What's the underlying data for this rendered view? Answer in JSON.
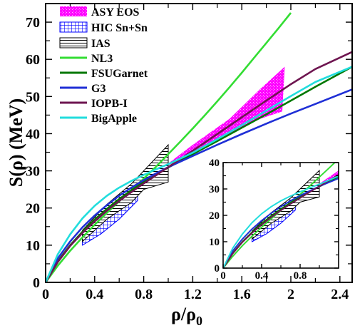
{
  "chart_data": {
    "type": "line",
    "xlabel": "ρ/ρ",
    "xlabel_sub": "0",
    "ylabel": "S(ρ) (MeV)",
    "xlim": [
      0,
      2.5
    ],
    "ylim": [
      0,
      75
    ],
    "x_ticks": [
      "0",
      "0.4",
      "0.8",
      "1.2",
      "1.6",
      "2",
      "2.4"
    ],
    "y_ticks": [
      "0",
      "10",
      "20",
      "30",
      "40",
      "50",
      "60",
      "70"
    ],
    "legend_position": "top-left",
    "bands": [
      {
        "name": "ASY EOS",
        "color": "#ff00ff",
        "pattern": "cross-dots",
        "upper": [
          [
            1.0,
            32.0
          ],
          [
            1.2,
            37.0
          ],
          [
            1.5,
            44.0
          ],
          [
            1.75,
            52.0
          ],
          [
            1.95,
            58.0
          ]
        ],
        "lower": [
          [
            1.0,
            31.5
          ],
          [
            1.2,
            34.5
          ],
          [
            1.5,
            40.0
          ],
          [
            1.75,
            44.0
          ],
          [
            1.93,
            46.0
          ]
        ]
      },
      {
        "name": "HIC Sn+Sn",
        "color": "#0000ff",
        "pattern": "grid",
        "upper": [
          [
            0.3,
            13.0
          ],
          [
            0.45,
            17.5
          ],
          [
            0.6,
            21.5
          ],
          [
            0.75,
            26.0
          ]
        ],
        "lower": [
          [
            0.3,
            10.0
          ],
          [
            0.45,
            13.0
          ],
          [
            0.6,
            17.0
          ],
          [
            0.75,
            22.0
          ]
        ]
      },
      {
        "name": "IAS",
        "color": "#000000",
        "pattern": "horizontal-lines",
        "upper": [
          [
            0.3,
            14.0
          ],
          [
            0.5,
            21.0
          ],
          [
            0.7,
            26.5
          ],
          [
            1.0,
            37.0
          ]
        ],
        "lower": [
          [
            0.3,
            11.0
          ],
          [
            0.5,
            17.0
          ],
          [
            0.7,
            21.5
          ],
          [
            0.8,
            25.0
          ],
          [
            1.0,
            27.0
          ]
        ]
      }
    ],
    "series": [
      {
        "name": "NL3",
        "color": "#33dd33",
        "x": [
          0,
          0.1,
          0.2,
          0.3,
          0.4,
          0.5,
          0.6,
          0.7,
          0.8,
          0.9,
          1.0,
          1.1,
          1.2,
          1.3,
          1.4,
          1.5,
          1.6,
          1.7,
          1.8,
          1.9,
          2.0
        ],
        "y": [
          0,
          4.5,
          8.5,
          12.1,
          15.5,
          18.7,
          21.8,
          24.8,
          27.9,
          31.1,
          34.5,
          37.9,
          41.4,
          45.0,
          48.7,
          52.5,
          56.4,
          60.4,
          64.4,
          68.4,
          72.5
        ]
      },
      {
        "name": "FSUGarnet",
        "color": "#007700",
        "x": [
          0,
          0.1,
          0.2,
          0.3,
          0.4,
          0.5,
          0.6,
          0.7,
          0.8,
          0.9,
          1.0,
          1.2,
          1.4,
          1.6,
          1.8,
          2.0,
          2.2,
          2.5
        ],
        "y": [
          0,
          5.7,
          10.0,
          13.6,
          16.9,
          19.8,
          22.4,
          24.8,
          27.0,
          29.0,
          30.9,
          34.5,
          38.0,
          41.6,
          45.2,
          48.9,
          52.6,
          58.0
        ]
      },
      {
        "name": "G3",
        "color": "#1f2fd6",
        "x": [
          0,
          0.1,
          0.2,
          0.3,
          0.4,
          0.5,
          0.6,
          0.7,
          0.8,
          0.9,
          1.0,
          1.2,
          1.4,
          1.6,
          1.8,
          2.0,
          2.2,
          2.5
        ],
        "y": [
          0,
          6.5,
          11.0,
          14.8,
          18.0,
          20.8,
          23.3,
          25.5,
          27.5,
          29.3,
          31.0,
          34.0,
          37.0,
          39.9,
          42.7,
          45.4,
          48.0,
          51.9
        ]
      },
      {
        "name": "IOPB-I",
        "color": "#6e1550",
        "x": [
          0,
          0.1,
          0.2,
          0.3,
          0.4,
          0.5,
          0.6,
          0.7,
          0.8,
          0.9,
          1.0,
          1.2,
          1.4,
          1.6,
          1.8,
          2.0,
          2.2,
          2.5
        ],
        "y": [
          0,
          5.5,
          9.8,
          13.3,
          16.4,
          19.3,
          21.9,
          24.3,
          26.6,
          28.8,
          31.0,
          35.4,
          39.9,
          44.4,
          48.9,
          53.3,
          57.4,
          62.0
        ]
      },
      {
        "name": "BigApple",
        "color": "#22dddd",
        "x": [
          0,
          0.1,
          0.2,
          0.3,
          0.4,
          0.5,
          0.6,
          0.7,
          0.8,
          0.9,
          1.0,
          1.2,
          1.4,
          1.6,
          1.8,
          2.0,
          2.2,
          2.5
        ],
        "y": [
          0,
          7.6,
          12.9,
          17.2,
          20.6,
          23.3,
          25.5,
          27.3,
          28.9,
          30.4,
          31.8,
          34.9,
          38.5,
          42.3,
          46.2,
          50.1,
          53.9,
          58.0
        ]
      }
    ],
    "inset": {
      "xlim": [
        0,
        1.2
      ],
      "ylim": [
        0,
        40
      ],
      "x_ticks": [
        "0",
        "0.4",
        "0.8"
      ],
      "y_ticks": [
        "0",
        "10",
        "20",
        "30",
        "40"
      ],
      "x_tick_values": [
        0,
        0.4,
        0.8
      ],
      "y_tick_values": [
        0,
        10,
        20,
        30,
        40
      ]
    },
    "x_tick_values": [
      0,
      0.4,
      0.8,
      1.2,
      1.6,
      2.0,
      2.4
    ],
    "y_tick_values": [
      0,
      10,
      20,
      30,
      40,
      50,
      60,
      70
    ]
  }
}
